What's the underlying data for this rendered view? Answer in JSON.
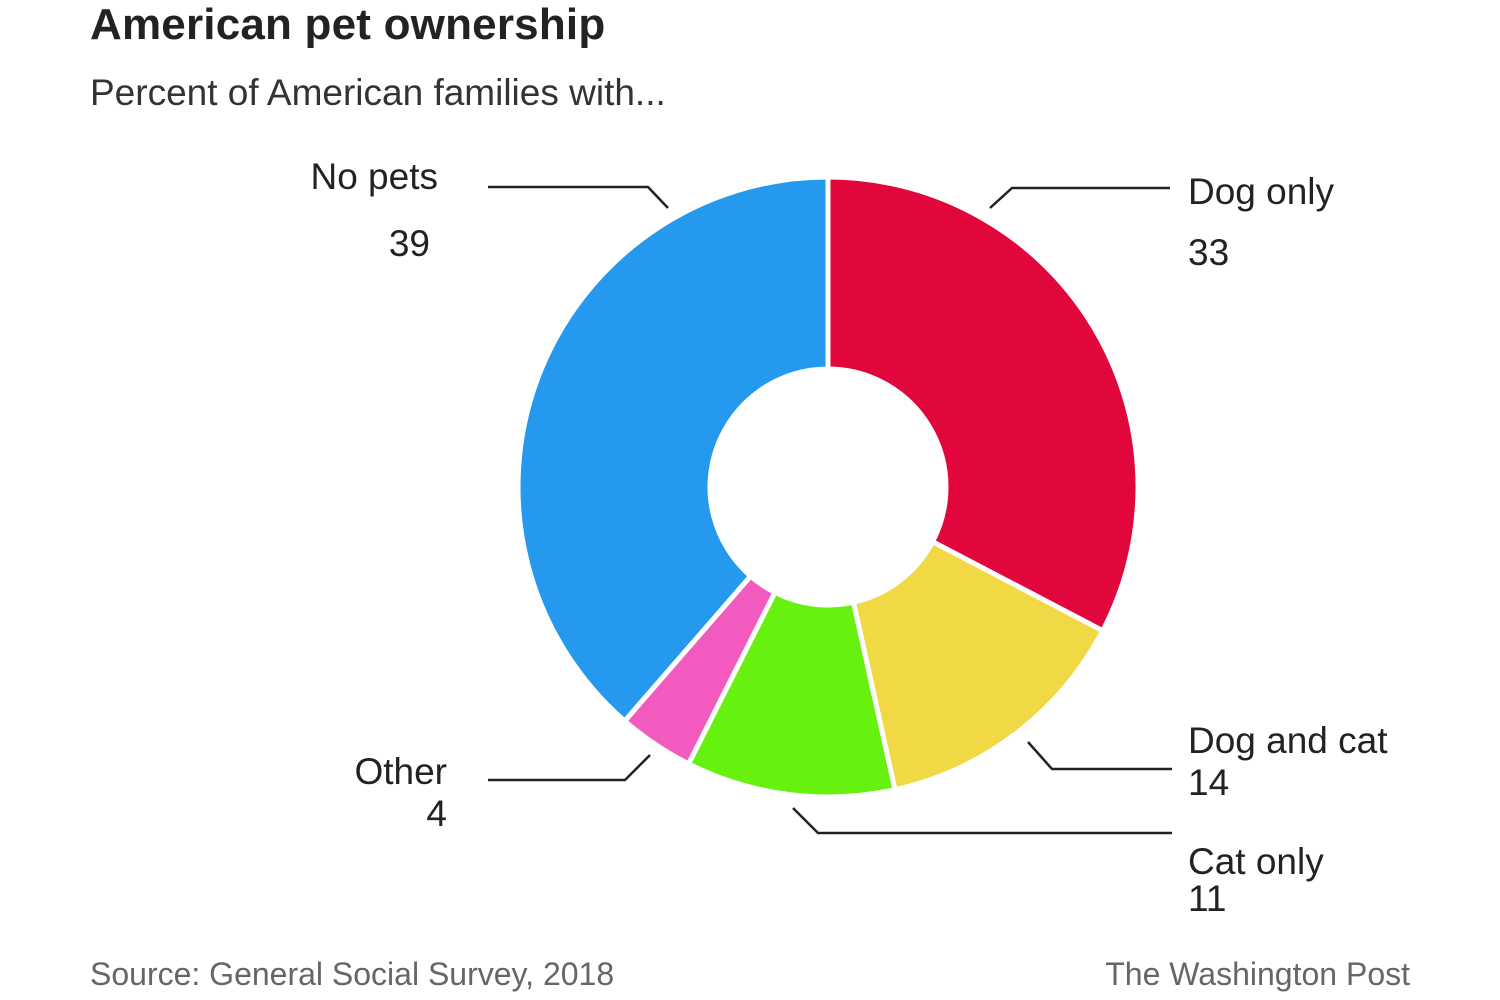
{
  "title": "American pet ownership",
  "subtitle": "Percent of American families with...",
  "source": "Source: General Social Survey, 2018",
  "credit": "The Washington Post",
  "chart_data": {
    "type": "pie",
    "donut": true,
    "categories": [
      "Dog only",
      "Dog and cat",
      "Cat only",
      "Other",
      "No pets"
    ],
    "values": [
      33,
      14,
      11,
      4,
      39
    ],
    "colors": [
      "#e1063c",
      "#f0d944",
      "#66f10f",
      "#f25abf",
      "#2499ee"
    ]
  }
}
